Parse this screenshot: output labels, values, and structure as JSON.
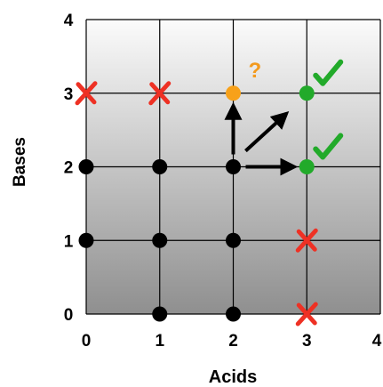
{
  "chart_data": {
    "type": "scatter",
    "title": "",
    "xlabel": "Acids",
    "ylabel": "Bases",
    "xlim": [
      0,
      4
    ],
    "ylim": [
      0,
      4
    ],
    "x_ticks": [
      "0",
      "1",
      "2",
      "3",
      "4"
    ],
    "y_ticks": [
      "0",
      "1",
      "2",
      "3",
      "4"
    ],
    "grid": true,
    "points": [
      {
        "x": 0,
        "y": 1,
        "marker": "dot"
      },
      {
        "x": 0,
        "y": 2,
        "marker": "dot"
      },
      {
        "x": 0,
        "y": 3,
        "marker": "cross"
      },
      {
        "x": 1,
        "y": 0,
        "marker": "dot"
      },
      {
        "x": 1,
        "y": 1,
        "marker": "dot"
      },
      {
        "x": 1,
        "y": 2,
        "marker": "dot"
      },
      {
        "x": 1,
        "y": 3,
        "marker": "cross"
      },
      {
        "x": 2,
        "y": 0,
        "marker": "dot"
      },
      {
        "x": 2,
        "y": 1,
        "marker": "dot"
      },
      {
        "x": 2,
        "y": 2,
        "marker": "dot"
      },
      {
        "x": 2,
        "y": 3,
        "marker": "orange-dot"
      },
      {
        "x": 3,
        "y": 0,
        "marker": "cross"
      },
      {
        "x": 3,
        "y": 1,
        "marker": "cross"
      },
      {
        "x": 3,
        "y": 2,
        "marker": "green-dot"
      },
      {
        "x": 3,
        "y": 3,
        "marker": "green-dot"
      }
    ],
    "arrows": [
      {
        "from": [
          2,
          2
        ],
        "to": [
          2,
          3
        ]
      },
      {
        "from": [
          2,
          2
        ],
        "to": [
          3,
          3
        ]
      },
      {
        "from": [
          2,
          2
        ],
        "to": [
          3,
          2
        ]
      }
    ],
    "annotations": [
      {
        "text": "?",
        "at": [
          2,
          3
        ],
        "color": "#f39a1e"
      },
      {
        "symbol": "check",
        "at": [
          3,
          3
        ]
      },
      {
        "symbol": "check",
        "at": [
          3,
          2
        ]
      }
    ]
  },
  "colors": {
    "dot": "#000000",
    "cross": "#ee3124",
    "orange": "#f7a11a",
    "green": "#22aa2a",
    "arrow": "#000000",
    "grad_top": "#fbfbfb",
    "grad_bottom": "#8f8f8f"
  }
}
